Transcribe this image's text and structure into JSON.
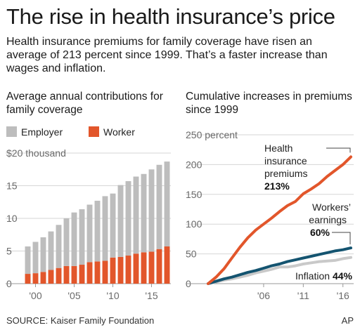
{
  "header": {
    "title": "The rise in health insurance’s price",
    "subtitle": "Health insurance premiums for family coverage have risen an average of 213 percent since 1999. That’s a faster increase than wages and inflation."
  },
  "footer": {
    "source": "SOURCE: Kaiser Family Foundation",
    "credit": "AP"
  },
  "colors": {
    "employer": "#bdbdbd",
    "worker": "#e2562b",
    "premiums": "#e2562b",
    "earnings": "#145470",
    "inflation": "#c9c9c9",
    "grid": "#d6d6d6"
  },
  "chart_data": [
    {
      "type": "bar",
      "stacked": true,
      "title": "Average annual contributions for family coverage",
      "unit": "thousand",
      "categories": [
        "1999",
        "2000",
        "2001",
        "2002",
        "2003",
        "2004",
        "2005",
        "2006",
        "2007",
        "2008",
        "2009",
        "2010",
        "2011",
        "2012",
        "2013",
        "2014",
        "2015",
        "2016",
        "2017"
      ],
      "tick_labels": [
        {
          "value": "2000",
          "label": "'00"
        },
        {
          "value": "2005",
          "label": "'05"
        },
        {
          "value": "2010",
          "label": "'10"
        },
        {
          "value": "2015",
          "label": "'15"
        }
      ],
      "y_ticks": [
        {
          "value": 0,
          "label": "0"
        },
        {
          "value": 5,
          "label": "5"
        },
        {
          "value": 10,
          "label": "10"
        },
        {
          "value": 15,
          "label": "15"
        },
        {
          "value": 20,
          "label": "$20 thousand"
        }
      ],
      "ylim": [
        0,
        20
      ],
      "series": [
        {
          "name": "Worker",
          "values": [
            1.5,
            1.6,
            1.8,
            2.1,
            2.4,
            2.7,
            2.7,
            2.9,
            3.3,
            3.4,
            3.5,
            4.0,
            4.1,
            4.3,
            4.6,
            4.8,
            4.9,
            5.3,
            5.7
          ]
        },
        {
          "name": "Employer",
          "values": [
            4.2,
            4.8,
            5.3,
            5.9,
            6.6,
            7.3,
            8.2,
            8.5,
            8.8,
            9.3,
            9.9,
            9.8,
            11.0,
            11.4,
            11.8,
            12.0,
            12.6,
            12.9,
            13.0
          ]
        }
      ],
      "legend": "top-left",
      "grid": true
    },
    {
      "type": "line",
      "title": "Cumulative increases in premiums since 1999",
      "x": [
        1999,
        2000,
        2001,
        2002,
        2003,
        2004,
        2005,
        2006,
        2007,
        2008,
        2009,
        2010,
        2011,
        2012,
        2013,
        2014,
        2015,
        2016,
        2017
      ],
      "tick_labels": [
        {
          "value": 2006,
          "label": "'06"
        },
        {
          "value": 2011,
          "label": "'11"
        },
        {
          "value": 2016,
          "label": "'16"
        }
      ],
      "y_ticks": [
        {
          "value": 0,
          "label": "0"
        },
        {
          "value": 50,
          "label": "50"
        },
        {
          "value": 100,
          "label": "100"
        },
        {
          "value": 150,
          "label": "150"
        },
        {
          "value": 200,
          "label": "200"
        },
        {
          "value": 250,
          "label": "250 percent"
        }
      ],
      "ylim": [
        0,
        250
      ],
      "series": [
        {
          "name": "Health insurance premiums",
          "label_lines": [
            "Health",
            "insurance",
            "premiums"
          ],
          "end_label": "213%",
          "values": [
            0,
            11,
            25,
            43,
            61,
            77,
            90,
            100,
            110,
            121,
            131,
            138,
            151,
            159,
            168,
            180,
            190,
            200,
            213
          ]
        },
        {
          "name": "Workers’ earnings",
          "label_lines": [
            "Workers’",
            "earnings"
          ],
          "end_label": "60%",
          "values": [
            0,
            4,
            8,
            11,
            15,
            19,
            22,
            26,
            30,
            33,
            37,
            40,
            43,
            46,
            49,
            52,
            55,
            57,
            60
          ]
        },
        {
          "name": "Inflation",
          "label_lines": [
            "Inflation"
          ],
          "end_label": "44%",
          "values": [
            0,
            3,
            6,
            8,
            11,
            14,
            18,
            21,
            24,
            28,
            28,
            30,
            33,
            35,
            37,
            38,
            39,
            42,
            44
          ]
        }
      ],
      "grid": true
    }
  ]
}
